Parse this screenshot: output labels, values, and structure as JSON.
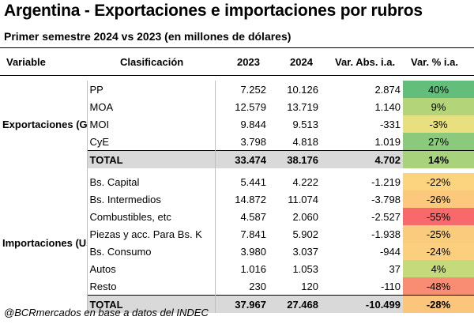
{
  "title": "Argentina - Exportaciones e importaciones por rubros",
  "subtitle": "Primer semestre 2024 vs 2023 (en millones de dólares)",
  "headers": {
    "variable": "Variable",
    "clasificacion": "Clasificación",
    "y2023": "2023",
    "y2024": "2024",
    "abs": "Var. Abs. i.a.",
    "pct": "Var. % i.a."
  },
  "exportaciones": {
    "label": "Exportaciones (Grandes Rubros)",
    "rows": [
      {
        "name": "PP",
        "v2023": "7.252",
        "v2024": "10.126",
        "abs": "2.874",
        "pct": "40%",
        "color": "#63be7b"
      },
      {
        "name": "MOA",
        "v2023": "12.579",
        "v2024": "13.719",
        "abs": "1.140",
        "pct": "9%",
        "color": "#b4d47a"
      },
      {
        "name": "MOI",
        "v2023": "9.844",
        "v2024": "9.513",
        "abs": "-331",
        "pct": "-3%",
        "color": "#e8e07e"
      },
      {
        "name": "CyE",
        "v2023": "3.798",
        "v2024": "4.818",
        "abs": "1.019",
        "pct": "27%",
        "color": "#8bca7d"
      }
    ],
    "total": {
      "name": "TOTAL",
      "v2023": "33.474",
      "v2024": "38.176",
      "abs": "4.702",
      "pct": "14%",
      "color": "#a8d27b"
    }
  },
  "importaciones": {
    "label": "Importaciones (Usos Económicos)",
    "rows": [
      {
        "name": "Bs. Capital",
        "v2023": "5.441",
        "v2024": "4.222",
        "abs": "-1.219",
        "pct": "-22%",
        "color": "#fcd47f"
      },
      {
        "name": "Bs. Intermedios",
        "v2023": "14.872",
        "v2024": "11.074",
        "abs": "-3.798",
        "pct": "-26%",
        "color": "#fbc87c"
      },
      {
        "name": "Combustibles, etc",
        "v2023": "4.587",
        "v2024": "2.060",
        "abs": "-2.527",
        "pct": "-55%",
        "color": "#f8696b"
      },
      {
        "name": "Piezas y acc. Para Bs. K",
        "v2023": "7.841",
        "v2024": "5.902",
        "abs": "-1.938",
        "pct": "-25%",
        "color": "#fbcb7d"
      },
      {
        "name": "Bs. Consumo",
        "v2023": "3.980",
        "v2024": "3.037",
        "abs": "-944",
        "pct": "-24%",
        "color": "#fccf7e"
      },
      {
        "name": "Autos",
        "v2023": "1.016",
        "v2024": "1.053",
        "abs": "37",
        "pct": "4%",
        "color": "#c6d97b"
      },
      {
        "name": "Resto",
        "v2023": "230",
        "v2024": "120",
        "abs": "-110",
        "pct": "-48%",
        "color": "#f98d73"
      }
    ],
    "total": {
      "name": "TOTAL",
      "v2023": "37.967",
      "v2024": "27.468",
      "abs": "-10.499",
      "pct": "-28%",
      "color": "#fbc57c"
    }
  },
  "footer": "@BCRmercados en base a datos del INDEC"
}
